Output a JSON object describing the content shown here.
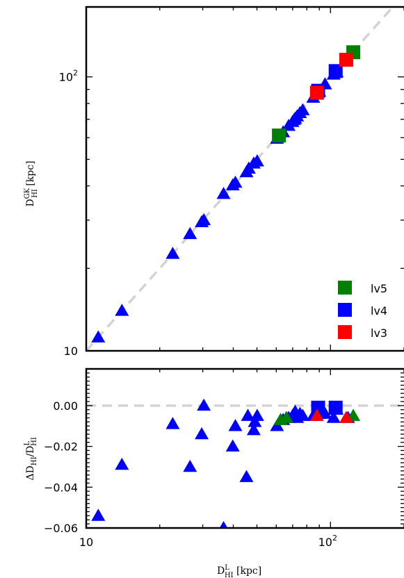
{
  "chart_data": [
    {
      "type": "scatter",
      "panel": "top",
      "xlabel": "D_HI^L [kpc]",
      "ylabel": "D_HI^GK [kpc]",
      "xscale": "log",
      "yscale": "log",
      "xlim": [
        10,
        200
      ],
      "ylim": [
        10,
        180
      ],
      "ytick_labels": [
        {
          "value": 10,
          "label": "10",
          "exp": ""
        },
        {
          "value": 100,
          "label": "10",
          "exp": "2"
        }
      ],
      "reference_line": {
        "style": "dashed",
        "color": "#d3d3d3",
        "relation": "y = x"
      },
      "legend": {
        "placement": "bottom-right",
        "entries": [
          {
            "label": "lv5",
            "color": "#008000"
          },
          {
            "label": "lv4",
            "color": "#0000ff"
          },
          {
            "label": "lv3",
            "color": "#ff0000"
          }
        ]
      },
      "series": [
        {
          "name": "lv4",
          "marker": "triangle",
          "color": "#0000ff",
          "points": [
            [
              11.2,
              11.2
            ],
            [
              14.0,
              14.0
            ],
            [
              22.6,
              22.6
            ],
            [
              26.6,
              26.7
            ],
            [
              29.7,
              29.5
            ],
            [
              30.3,
              30.0
            ],
            [
              36.5,
              37.4
            ],
            [
              39.8,
              40.2
            ],
            [
              40.8,
              41.1
            ],
            [
              45.3,
              44.9
            ],
            [
              46.3,
              46.3
            ],
            [
              48.5,
              48.3
            ],
            [
              50.1,
              49.2
            ],
            [
              60.4,
              59.5
            ],
            [
              64.0,
              62.8
            ],
            [
              67.4,
              66.3
            ],
            [
              69.9,
              68.5
            ],
            [
              71.0,
              69.7
            ],
            [
              71.7,
              70.4
            ],
            [
              73.0,
              71.8
            ],
            [
              75.0,
              73.8
            ],
            [
              77.0,
              75.6
            ],
            [
              85.0,
              84.0
            ],
            [
              90.0,
              88.4
            ],
            [
              95.0,
              94.0
            ],
            [
              103.0,
              102.0
            ],
            [
              106.0,
              104.0
            ]
          ]
        },
        {
          "name": "lv4",
          "marker": "square",
          "color": "#0000ff",
          "points": [
            [
              89.0,
              89.0
            ],
            [
              105.0,
              105.0
            ]
          ]
        },
        {
          "name": "lv5",
          "marker": "square",
          "color": "#008000",
          "points": [
            [
              61.5,
              61.1
            ],
            [
              124.0,
              123.0
            ]
          ]
        },
        {
          "name": "lv3",
          "marker": "square",
          "color": "#ff0000",
          "points": [
            [
              88.0,
              87.5
            ],
            [
              116.0,
              115.5
            ]
          ]
        }
      ]
    },
    {
      "type": "scatter",
      "panel": "bottom",
      "xlabel": "D_HI^L [kpc]",
      "ylabel": "ΔD_HI / D_HI^L",
      "xscale": "log",
      "xlim": [
        10,
        200
      ],
      "ylim": [
        -0.06,
        0.018
      ],
      "ytick_labels": [
        "0.00",
        "−0.02",
        "−0.04",
        "−0.06"
      ],
      "xtick_labels": [
        {
          "value": 10,
          "label": "10",
          "exp": ""
        },
        {
          "value": 100,
          "label": "10",
          "exp": "2"
        }
      ],
      "reference_line": {
        "style": "dashed",
        "color": "#d3d3d3",
        "y": 0
      },
      "series": [
        {
          "name": "lv4",
          "marker": "triangle",
          "color": "#0000ff",
          "points": [
            [
              11.2,
              -0.054
            ],
            [
              14.0,
              -0.029
            ],
            [
              22.6,
              -0.009
            ],
            [
              26.6,
              -0.03
            ],
            [
              29.7,
              -0.014
            ],
            [
              30.3,
              0.0
            ],
            [
              36.5,
              -0.06
            ],
            [
              39.8,
              -0.02
            ],
            [
              40.8,
              -0.01
            ],
            [
              45.3,
              -0.035
            ],
            [
              45.9,
              -0.005
            ],
            [
              48.5,
              -0.012
            ],
            [
              49.0,
              -0.008
            ],
            [
              50.1,
              -0.005
            ],
            [
              60.4,
              -0.01
            ],
            [
              64.0,
              -0.007
            ],
            [
              67.4,
              -0.006
            ],
            [
              69.9,
              -0.005
            ],
            [
              71.0,
              -0.004
            ],
            [
              71.7,
              -0.003
            ],
            [
              73.0,
              -0.006
            ],
            [
              75.0,
              -0.004
            ],
            [
              77.0,
              -0.005
            ],
            [
              85.0,
              -0.005
            ],
            [
              90.0,
              -0.004
            ],
            [
              95.0,
              -0.004
            ],
            [
              103.0,
              -0.006
            ],
            [
              106.0,
              -0.002
            ],
            [
              118.0,
              -0.006
            ]
          ]
        },
        {
          "name": "lv4",
          "marker": "square",
          "color": "#0000ff",
          "points": [
            [
              89.0,
              -0.001
            ],
            [
              105.0,
              -0.001
            ]
          ]
        },
        {
          "name": "lv5",
          "marker": "triangle",
          "color": "#008000",
          "points": [
            [
              62.5,
              -0.007
            ],
            [
              66.0,
              -0.006
            ],
            [
              124.0,
              -0.005
            ]
          ]
        },
        {
          "name": "lv3",
          "marker": "triangle",
          "color": "#ff0000",
          "points": [
            [
              88.0,
              -0.005
            ],
            [
              116.0,
              -0.006
            ]
          ]
        }
      ]
    }
  ]
}
